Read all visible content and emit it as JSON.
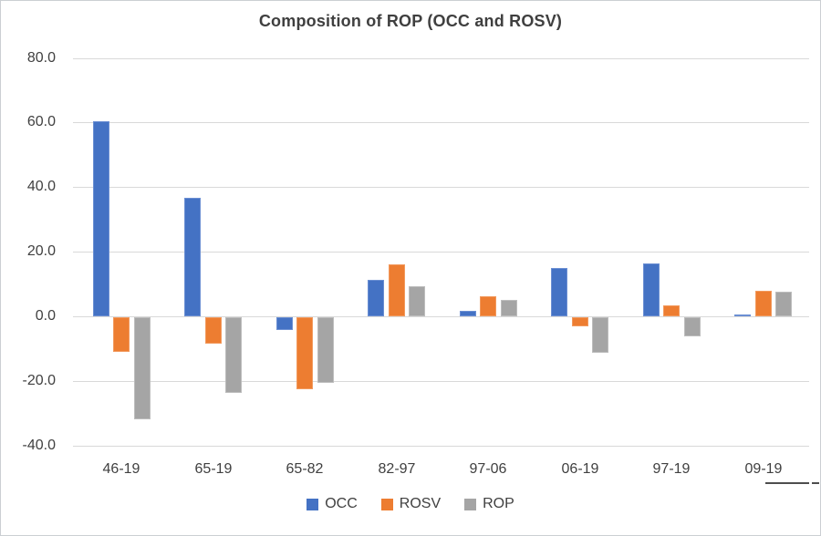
{
  "window": {
    "background": "#ffffff",
    "border_color": "#cbcfd3",
    "text_color": "#404040",
    "gridline_color": "#d9d9d9"
  },
  "chart_data": {
    "type": "bar",
    "title": "Composition of ROP (OCC and ROSV)",
    "categories": [
      "46-19",
      "65-19",
      "65-82",
      "82-97",
      "97-06",
      "06-19",
      "97-19",
      "09-19"
    ],
    "series": [
      {
        "name": "OCC",
        "color": "#4472C4",
        "border_color": "#6b8fd3",
        "values": [
          60.3,
          36.6,
          -4.0,
          11.2,
          1.6,
          14.9,
          16.3,
          0.4
        ]
      },
      {
        "name": "ROSV",
        "color": "#ED7D31",
        "border_color": "#f29a5e",
        "values": [
          -10.7,
          -8.3,
          -22.2,
          16.0,
          6.1,
          -2.9,
          3.3,
          7.8
        ]
      },
      {
        "name": "ROP",
        "color": "#A5A5A5",
        "border_color": "#bdbdbd",
        "values": [
          -31.6,
          -23.5,
          -20.2,
          9.4,
          5.0,
          -10.9,
          -5.9,
          7.6
        ]
      }
    ],
    "xlabel": "",
    "ylabel": "",
    "ylim": [
      -40,
      80
    ],
    "ytick_interval": 20,
    "yticks": [
      80,
      60,
      40,
      20,
      0,
      -20,
      -40
    ],
    "ytick_labels": [
      "80.0",
      "60.0",
      "40.0",
      "20.0",
      "0.0",
      "-20.0",
      "-40.0"
    ],
    "grid": true,
    "legend_position": "bottom",
    "legend_entries": [
      "OCC",
      "ROSV",
      "ROP"
    ]
  }
}
